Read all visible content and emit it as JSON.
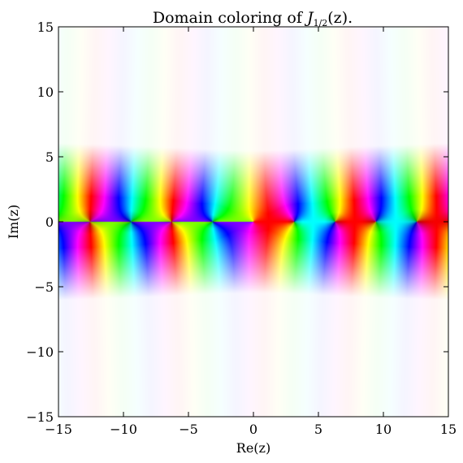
{
  "chart_data": {
    "type": "heatmap",
    "title": "Domain coloring of J_{1/2}(z).",
    "xlabel": "Re(z)",
    "ylabel": "Im(z)",
    "xlim": [
      -15,
      15
    ],
    "ylim": [
      -15,
      15
    ],
    "xticks": [
      -15,
      -10,
      -5,
      0,
      5,
      10,
      15
    ],
    "yticks": [
      -15,
      -10,
      -5,
      0,
      5,
      10,
      15
    ],
    "xtick_labels": [
      "−15",
      "−10",
      "−5",
      "0",
      "5",
      "10",
      "15"
    ],
    "ytick_labels": [
      "−15",
      "−10",
      "−5",
      "0",
      "5",
      "10",
      "15"
    ],
    "function": "J_{1/2}(z)",
    "zeros_re": [
      -12.566,
      -9.425,
      -6.283,
      -3.142,
      3.142,
      6.283,
      9.425,
      12.566
    ],
    "branch_cut": "negative real axis",
    "colormap": "hue = argument, brightness = magnitude",
    "grid": false
  }
}
